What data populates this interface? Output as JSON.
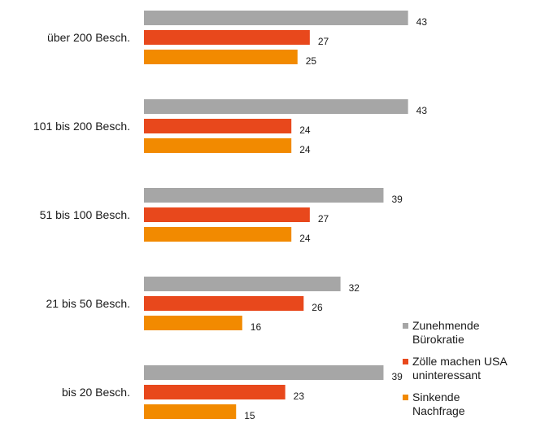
{
  "chart_data": {
    "type": "bar",
    "orientation": "horizontal",
    "categories": [
      "über 200 Besch.",
      "101 bis 200 Besch.",
      "51 bis 100 Besch.",
      "21 bis 50 Besch.",
      "bis 20 Besch."
    ],
    "series": [
      {
        "name": "Zunehmende Bürokratie",
        "color": "#a6a6a6",
        "values": [
          43,
          43,
          39,
          32,
          39
        ]
      },
      {
        "name": "Zölle machen USA uninteressant",
        "color": "#e8481c",
        "values": [
          27,
          24,
          27,
          26,
          23
        ]
      },
      {
        "name": "Sinkende Nachfrage",
        "color": "#f28a00",
        "values": [
          25,
          24,
          24,
          16,
          15
        ]
      }
    ],
    "xlim": [
      0,
      45
    ],
    "grid": false,
    "legend": "bottom-right"
  },
  "legend": {
    "items": [
      {
        "line1": "Zunehmende",
        "line2": "Bürokratie",
        "color": "#a6a6a6"
      },
      {
        "line1": "Zölle machen USA",
        "line2": "uninteressant",
        "color": "#e8481c"
      },
      {
        "line1": "Sinkende",
        "line2": "Nachfrage",
        "color": "#f28a00"
      }
    ]
  }
}
